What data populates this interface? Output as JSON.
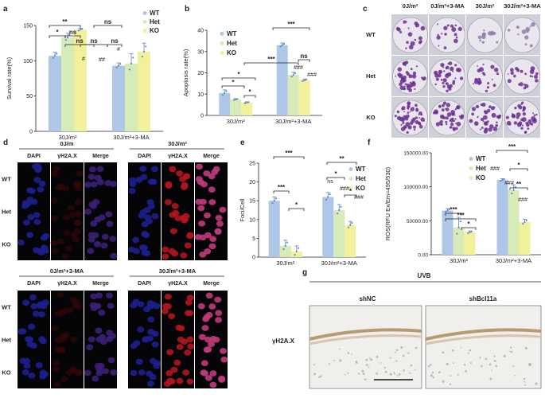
{
  "panel_letters": [
    "a",
    "b",
    "c",
    "d",
    "e",
    "f",
    "g"
  ],
  "colors": {
    "wt": "#aec7e8",
    "het": "#d7ebb9",
    "ko": "#f2f09a",
    "err": "#5b86c5",
    "dapi": "#1c1f8e",
    "h2ax": "#b3151d",
    "merge": "#7a1a6e"
  },
  "legend": [
    "WT",
    "Het",
    "KO"
  ],
  "chart_data": [
    {
      "panel": "a",
      "type": "bar",
      "ylabel": "Survival rate(%)",
      "ylim": [
        0,
        150
      ],
      "yticks": [
        "0",
        "50",
        "100",
        "150"
      ],
      "categories": [
        "30J/m²",
        "30J/m²+3-MA"
      ],
      "series": [
        {
          "name": "WT",
          "values": [
            107,
            93
          ]
        },
        {
          "name": "Het",
          "values": [
            133,
            96
          ]
        },
        {
          "name": "KO",
          "values": [
            144,
            113
          ]
        }
      ],
      "errors": [
        [
          5,
          6,
          2
        ],
        [
          4,
          14,
          12
        ]
      ],
      "marks": [
        "#",
        "##",
        "#"
      ],
      "sig": [
        "**",
        "*",
        "ns",
        "ns",
        "ns",
        "ns",
        "ns"
      ]
    },
    {
      "panel": "b",
      "type": "bar",
      "ylabel": "Apoptosis rate(%)",
      "ylim": [
        0,
        40
      ],
      "yticks": [
        "0",
        "10",
        "20",
        "30",
        "40"
      ],
      "categories": [
        "30J/m²",
        "30J/m²+3-MA"
      ],
      "series": [
        {
          "name": "WT",
          "values": [
            10.5,
            33
          ]
        },
        {
          "name": "Het",
          "values": [
            7.5,
            19
          ]
        },
        {
          "name": "KO",
          "values": [
            6,
            16.5
          ]
        }
      ],
      "errors": [
        [
          1.5,
          0.4,
          0.4
        ],
        [
          1,
          1.3,
          0.6
        ]
      ],
      "marks": [
        "###",
        "###"
      ],
      "sig": [
        "*",
        "*",
        "*",
        "***",
        "***",
        "ns"
      ]
    },
    {
      "panel": "e",
      "type": "bar",
      "ylabel": "Foci/Cell",
      "ylim": [
        0,
        25
      ],
      "yticks": [
        "0",
        "5",
        "10",
        "15",
        "20",
        "25"
      ],
      "categories": [
        "30J/m²",
        "30J/m²+3-MA"
      ],
      "series": [
        {
          "name": "WT",
          "values": [
            15,
            16
          ]
        },
        {
          "name": "Het",
          "values": [
            3,
            12.5
          ]
        },
        {
          "name": "KO",
          "values": [
            1.5,
            8.5
          ]
        }
      ],
      "errors": [
        [
          1,
          1.5
        ],
        [
          1.2,
          1.5
        ],
        [
          1.5,
          1
        ]
      ],
      "marks": [
        "ns",
        "###",
        "###"
      ],
      "sig": [
        "***",
        "***",
        "*",
        "**",
        "*",
        "*"
      ]
    },
    {
      "panel": "f",
      "type": "bar",
      "ylabel": "ROS(RFU Ex/Em=495/530)",
      "ylim": [
        0,
        150000
      ],
      "yticks": [
        "0.00",
        "50000.00",
        "100000.00",
        "150000.00"
      ],
      "categories": [
        "30J/m²",
        "30J/m²+3-MA"
      ],
      "series": [
        {
          "name": "WT",
          "values": [
            65000,
            110000
          ]
        },
        {
          "name": "Het",
          "values": [
            40000,
            95000
          ]
        },
        {
          "name": "KO",
          "values": [
            33000,
            48000
          ]
        }
      ],
      "errors": [
        [
          3000,
          15000
        ],
        [
          2000,
          8000
        ],
        [
          2000,
          4000
        ]
      ],
      "marks": [
        "###",
        "###",
        "###"
      ],
      "sig": [
        "***",
        "***",
        "*",
        "***",
        "*",
        "**"
      ]
    }
  ],
  "panel_c": {
    "cols": [
      "0J/m²",
      "0J/m²+3-MA",
      "30J/m²",
      "30J/m²+3-MA"
    ],
    "rows": [
      "WT",
      "Het",
      "KO"
    ]
  },
  "panel_d": {
    "top_groups": [
      "0J/m",
      "30J/m²"
    ],
    "bottom_groups": [
      "0J/m²+3-MA",
      "30J/m²+3-MA"
    ],
    "channels": [
      "DAPI",
      "γH2A.X",
      "Merge"
    ],
    "rows": [
      "WT",
      "Het",
      "KO"
    ]
  },
  "panel_g": {
    "treatment": "UVB",
    "groups": [
      "shNC",
      "shBcl11a"
    ],
    "row_label": "γH2A.X"
  }
}
